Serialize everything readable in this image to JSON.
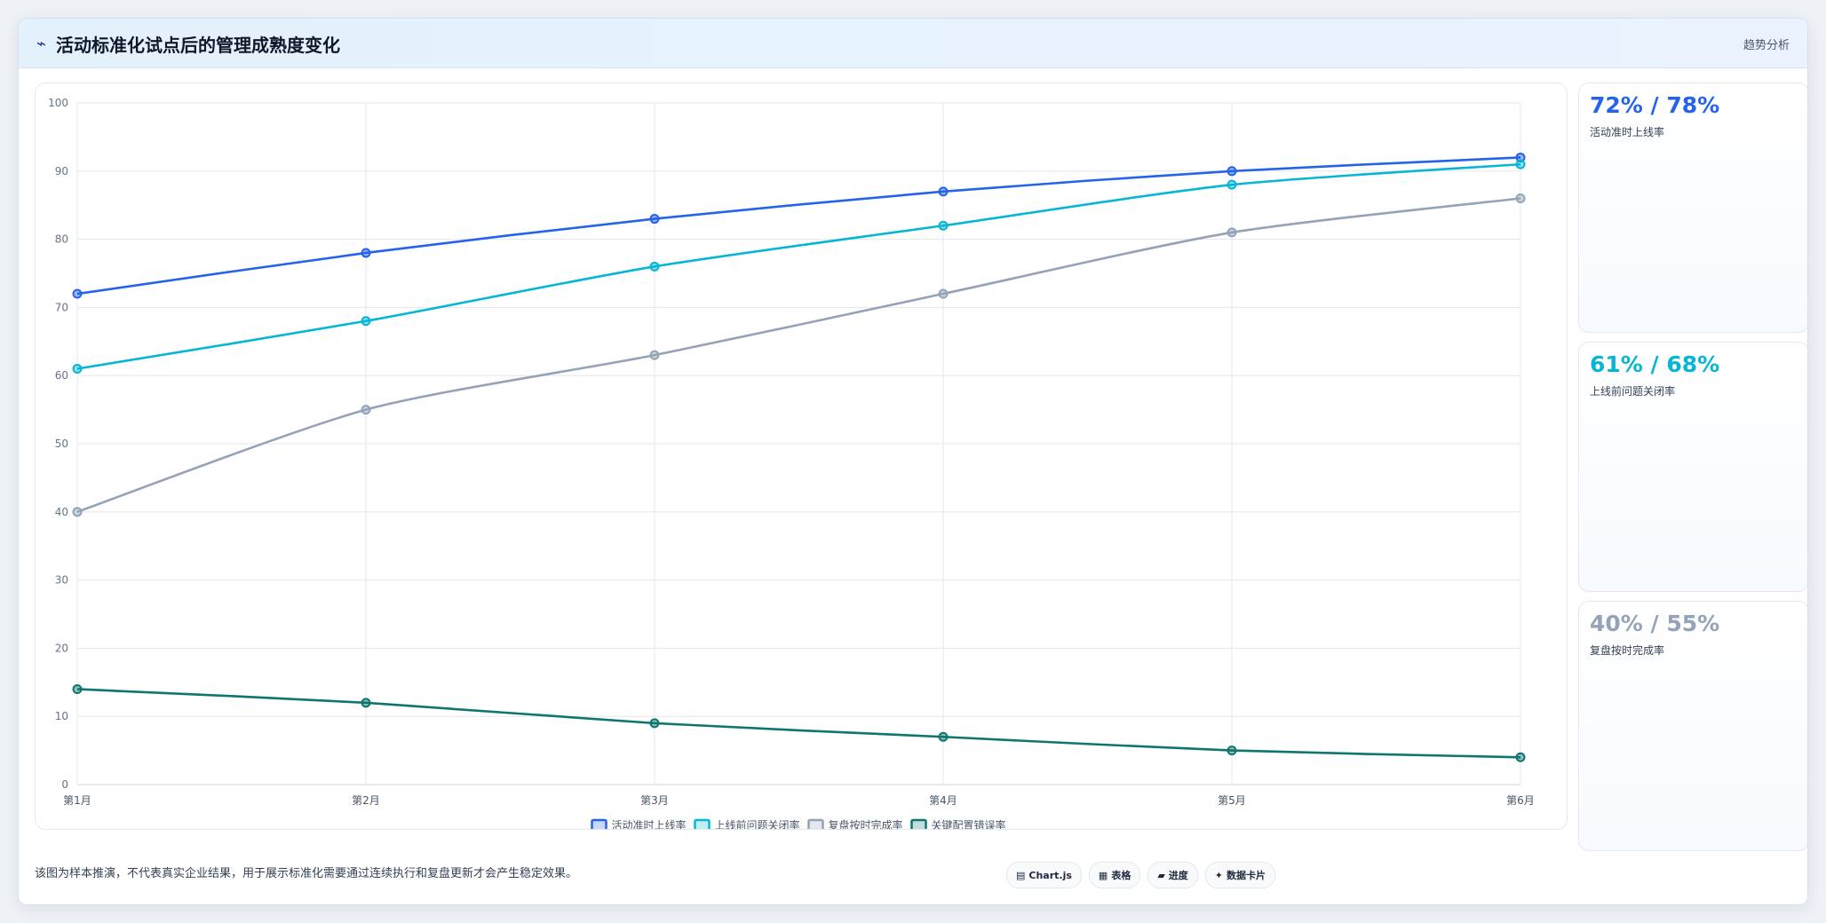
{
  "header": {
    "icon": "trend-line-icon",
    "icon_glyph": "⌁",
    "title": "活动标准化试点后的管理成熟度变化",
    "tag": "趋势分析"
  },
  "chart_data": {
    "type": "line",
    "categories": [
      "第1月",
      "第2月",
      "第3月",
      "第4月",
      "第5月",
      "第6月"
    ],
    "ylim": [
      0,
      100
    ],
    "yticks": [
      0,
      10,
      20,
      30,
      40,
      50,
      60,
      70,
      80,
      90,
      100
    ],
    "grid": true,
    "legend_position": "bottom",
    "series": [
      {
        "name": "活动准时上线率",
        "color": "#2563eb",
        "values": [
          72,
          78,
          83,
          87,
          90,
          92
        ]
      },
      {
        "name": "上线前问题关闭率",
        "color": "#06b6d4",
        "values": [
          61,
          68,
          76,
          82,
          88,
          91
        ]
      },
      {
        "name": "复盘按时完成率",
        "color": "#94a3b8",
        "values": [
          40,
          55,
          63,
          72,
          81,
          86
        ]
      },
      {
        "name": "关键配置错误率",
        "color": "#0f766e",
        "values": [
          14,
          12,
          9,
          7,
          5,
          4
        ]
      }
    ]
  },
  "side_cards": [
    {
      "value": "72% / 78%",
      "label": "活动准时上线率",
      "color": "#2563eb"
    },
    {
      "value": "61% / 68%",
      "label": "上线前问题关闭率",
      "color": "#06b6d4"
    },
    {
      "value": "40% / 55%",
      "label": "复盘按时完成率",
      "color": "#94a3b8"
    }
  ],
  "footnote": "该图为样本推演，不代表真实企业结果，用于展示标准化需要通过连续执行和复盘更新才会产生稳定效果。",
  "pills": [
    {
      "icon": "chart-icon",
      "glyph": "▤",
      "label": "Chart.js"
    },
    {
      "icon": "table-icon",
      "glyph": "▦",
      "label": "表格"
    },
    {
      "icon": "progress-icon",
      "glyph": "▰",
      "label": "进度"
    },
    {
      "icon": "data-card-icon",
      "glyph": "✦",
      "label": "数据卡片"
    }
  ]
}
